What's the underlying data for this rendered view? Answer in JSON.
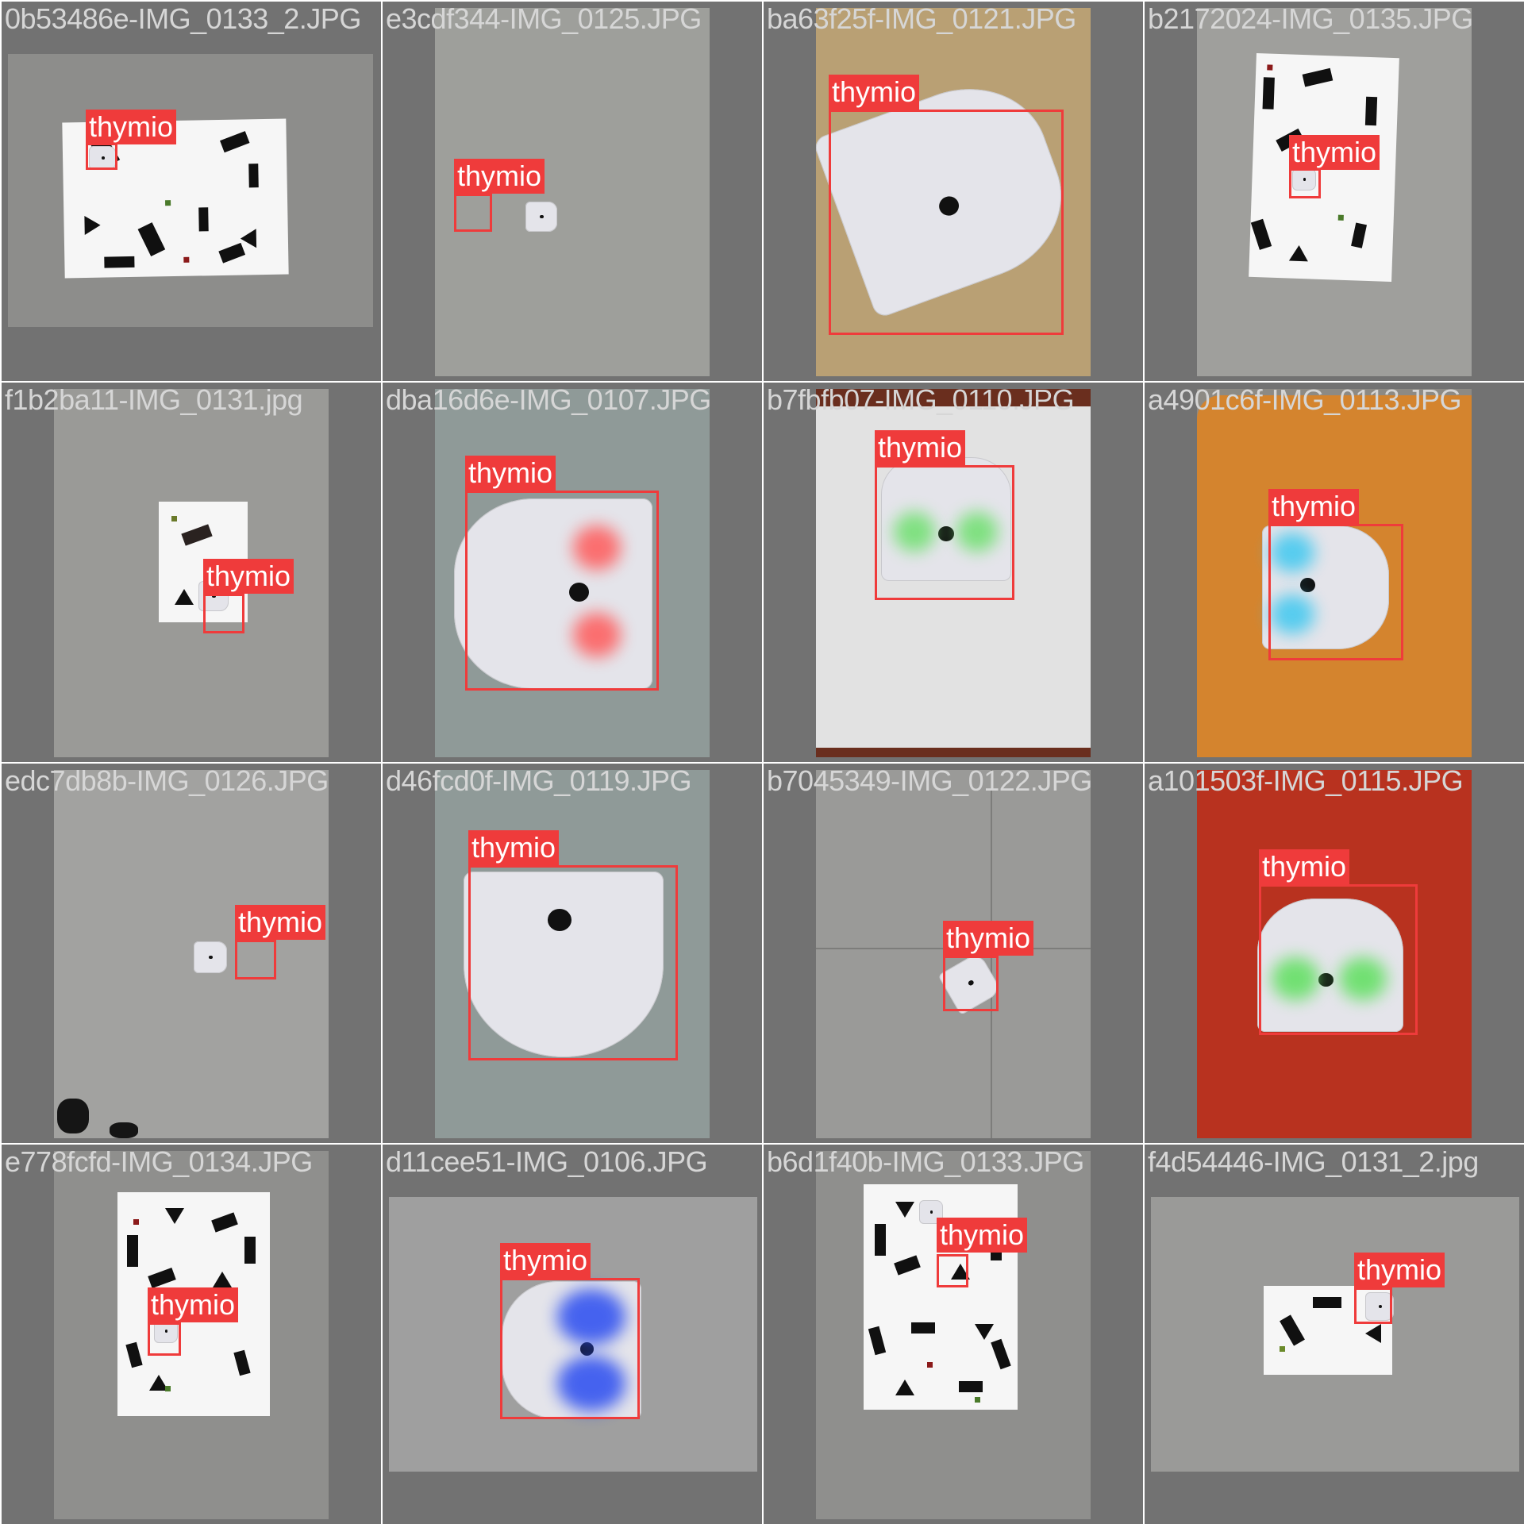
{
  "grid": {
    "label": "thymio",
    "cells": [
      {
        "filename": "0b53486e-IMG_0133_2.JPG"
      },
      {
        "filename": "e3cdf344-IMG_0125.JPG"
      },
      {
        "filename": "ba63f25f-IMG_0121.JPG"
      },
      {
        "filename": "b2172024-IMG_0135.JPG"
      },
      {
        "filename": "f1b2ba11-IMG_0131.jpg"
      },
      {
        "filename": "dba16d6e-IMG_0107.JPG"
      },
      {
        "filename": "b7fbfb07-IMG_0110.JPG"
      },
      {
        "filename": "a4901c6f-IMG_0113.JPG"
      },
      {
        "filename": "edc7db8b-IMG_0126.JPG"
      },
      {
        "filename": "d46fcd0f-IMG_0119.JPG"
      },
      {
        "filename": "b7045349-IMG_0122.JPG"
      },
      {
        "filename": "a101503f-IMG_0115.JPG"
      },
      {
        "filename": "e778fcfd-IMG_0134.JPG"
      },
      {
        "filename": "d11cee51-IMG_0106.JPG"
      },
      {
        "filename": "b6d1f40b-IMG_0133.JPG"
      },
      {
        "filename": "f4d54446-IMG_0131_2.jpg"
      }
    ]
  },
  "colors": {
    "box": "#ef3b3b",
    "label_text": "#ffffff",
    "background": "#727272",
    "filename_text": "#d6d6d6"
  }
}
